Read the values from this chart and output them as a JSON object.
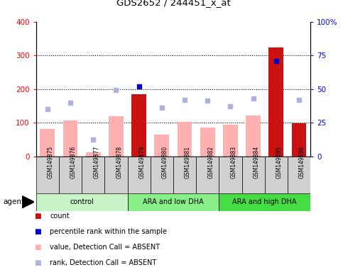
{
  "title": "GDS2652 / 244451_x_at",
  "samples": [
    "GSM149875",
    "GSM149876",
    "GSM149877",
    "GSM149878",
    "GSM149879",
    "GSM149880",
    "GSM149881",
    "GSM149882",
    "GSM149883",
    "GSM149884",
    "GSM149885",
    "GSM149886"
  ],
  "group_labels": [
    "control",
    "ARA and low DHA",
    "ARA and high DHA"
  ],
  "group_ranges": [
    [
      0,
      4
    ],
    [
      4,
      8
    ],
    [
      8,
      12
    ]
  ],
  "group_colors": [
    "#c8f5c8",
    "#88ee88",
    "#44dd44"
  ],
  "pink_bars": [
    82,
    107,
    12,
    120,
    185,
    65,
    102,
    85,
    95,
    122,
    323,
    98
  ],
  "dark_red_bars": [
    0,
    0,
    0,
    0,
    185,
    0,
    0,
    0,
    0,
    0,
    323,
    98
  ],
  "blue_squares_left_scale": [
    null,
    null,
    null,
    null,
    207,
    null,
    null,
    null,
    null,
    null,
    283,
    null
  ],
  "lavender_squares_left_scale": [
    140,
    160,
    50,
    198,
    null,
    145,
    168,
    165,
    148,
    172,
    null,
    168
  ],
  "ylim_left": [
    0,
    400
  ],
  "ylim_right": [
    0,
    100
  ],
  "yticks_left": [
    0,
    100,
    200,
    300,
    400
  ],
  "yticks_right": [
    0,
    25,
    50,
    75,
    100
  ],
  "ytick_labels_right": [
    "0",
    "25",
    "50",
    "75",
    "100%"
  ],
  "pink_color": "#ffb0b0",
  "dark_red_color": "#cc1111",
  "blue_color": "#0000cc",
  "lavender_color": "#b0b0dd",
  "gray_box_color": "#d0d0d0",
  "legend_items": [
    {
      "color": "#cc1111",
      "label": "count"
    },
    {
      "color": "#0000cc",
      "label": "percentile rank within the sample"
    },
    {
      "color": "#ffb0b0",
      "label": "value, Detection Call = ABSENT"
    },
    {
      "color": "#b0b0dd",
      "label": "rank, Detection Call = ABSENT"
    }
  ]
}
